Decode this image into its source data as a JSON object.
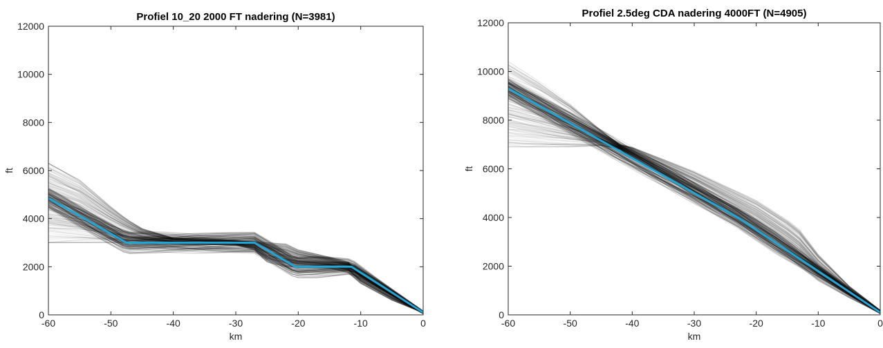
{
  "chart_data": [
    {
      "type": "line",
      "title": "Profiel 10_20 2000 FT nadering (N=3981)",
      "xlabel": "km",
      "ylabel": "ft",
      "xlim": [
        -60,
        0
      ],
      "ylim": [
        0,
        12000
      ],
      "xticks": [
        -60,
        -50,
        -40,
        -30,
        -20,
        -10,
        0
      ],
      "yticks": [
        0,
        2000,
        4000,
        6000,
        8000,
        10000,
        12000
      ],
      "grid": false,
      "legend": "none",
      "n_tracks": 3981,
      "tracks_color": "#000000",
      "profile_color": "#1fa6d6",
      "profile": {
        "x": [
          -60,
          -47.5,
          -27,
          -20.5,
          -11.5,
          0
        ],
        "y": [
          4850,
          3000,
          3000,
          2000,
          2000,
          100
        ]
      },
      "tracks_envelope": {
        "x": [
          -60,
          -55,
          -50,
          -47.5,
          -45,
          -40,
          -30,
          -27,
          -25,
          -22,
          -20,
          -15,
          -12,
          -10,
          -5,
          0
        ],
        "upper": [
          6300,
          5600,
          4500,
          4000,
          3600,
          3200,
          3100,
          3050,
          3000,
          2950,
          2700,
          2400,
          2200,
          1700,
          900,
          150
        ],
        "lower": [
          3000,
          3000,
          3000,
          3000,
          3000,
          2950,
          2900,
          2700,
          2200,
          2000,
          2000,
          1950,
          1750,
          1300,
          600,
          80
        ]
      }
    },
    {
      "type": "line",
      "title": "Profiel 2.5deg CDA nadering 4000FT (N=4905)",
      "xlabel": "km",
      "ylabel": "ft",
      "xlim": [
        -60,
        0
      ],
      "ylim": [
        0,
        12000
      ],
      "xticks": [
        -60,
        -50,
        -40,
        -30,
        -20,
        -10,
        0
      ],
      "yticks": [
        0,
        2000,
        4000,
        6000,
        8000,
        10000,
        12000
      ],
      "grid": false,
      "legend": "none",
      "n_tracks": 4905,
      "tracks_color": "#000000",
      "profile_color": "#1fa6d6",
      "profile": {
        "x": [
          -60,
          -23,
          0
        ],
        "y": [
          9300,
          4000,
          100
        ]
      },
      "tracks_envelope": {
        "x": [
          -60,
          -55,
          -50,
          -45,
          -42,
          -40,
          -35,
          -30,
          -25,
          -20,
          -15,
          -13,
          -10,
          -5,
          0
        ],
        "upper": [
          10400,
          9600,
          8700,
          7600,
          7000,
          6900,
          6400,
          5900,
          5300,
          4700,
          3900,
          3500,
          2500,
          1200,
          200
        ],
        "lower": [
          6900,
          6900,
          6900,
          6950,
          6800,
          6450,
          5700,
          4900,
          4100,
          3300,
          2400,
          2000,
          1400,
          700,
          60
        ]
      }
    }
  ]
}
